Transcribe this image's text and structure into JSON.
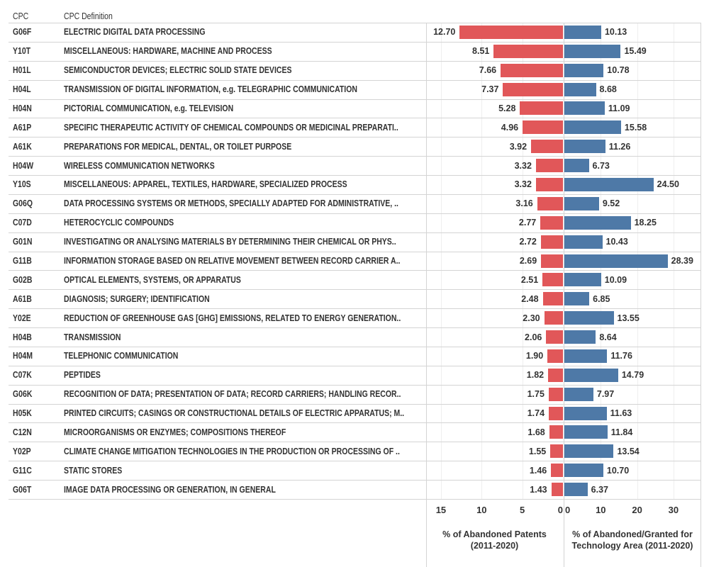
{
  "chart_data": {
    "type": "bar",
    "columns": {
      "code": "CPC",
      "definition": "CPC Definition"
    },
    "rows": [
      {
        "code": "G06F",
        "definition": "ELECTRIC DIGITAL DATA PROCESSING",
        "abandoned_pct": 12.7,
        "ratio_pct": 10.13
      },
      {
        "code": "Y10T",
        "definition": " MISCELLANEOUS: HARDWARE, MACHINE AND PROCESS",
        "abandoned_pct": 8.51,
        "ratio_pct": 15.49
      },
      {
        "code": "H01L",
        "definition": "SEMICONDUCTOR DEVICES; ELECTRIC SOLID STATE DEVICES",
        "abandoned_pct": 7.66,
        "ratio_pct": 10.78
      },
      {
        "code": "H04L",
        "definition": "TRANSMISSION OF DIGITAL INFORMATION, e.g. TELEGRAPHIC COMMUNICATION",
        "abandoned_pct": 7.37,
        "ratio_pct": 8.68
      },
      {
        "code": "H04N",
        "definition": "PICTORIAL COMMUNICATION, e.g. TELEVISION",
        "abandoned_pct": 5.28,
        "ratio_pct": 11.09
      },
      {
        "code": "A61P",
        "definition": "SPECIFIC THERAPEUTIC ACTIVITY OF CHEMICAL COMPOUNDS OR MEDICINAL PREPARATI..",
        "abandoned_pct": 4.96,
        "ratio_pct": 15.58
      },
      {
        "code": "A61K",
        "definition": "PREPARATIONS FOR MEDICAL, DENTAL, OR TOILET PURPOSE",
        "abandoned_pct": 3.92,
        "ratio_pct": 11.26
      },
      {
        "code": "H04W",
        "definition": "WIRELESS COMMUNICATION NETWORKS",
        "abandoned_pct": 3.32,
        "ratio_pct": 6.73
      },
      {
        "code": "Y10S",
        "definition": "MISCELLANEOUS: APPAREL, TEXTILES, HARDWARE, SPECIALIZED PROCESS",
        "abandoned_pct": 3.32,
        "ratio_pct": 24.5
      },
      {
        "code": "G06Q",
        "definition": "DATA PROCESSING SYSTEMS OR METHODS, SPECIALLY ADAPTED FOR ADMINISTRATIVE, ..",
        "abandoned_pct": 3.16,
        "ratio_pct": 9.52
      },
      {
        "code": "C07D",
        "definition": "HETEROCYCLIC COMPOUNDS",
        "abandoned_pct": 2.77,
        "ratio_pct": 18.25
      },
      {
        "code": "G01N",
        "definition": "INVESTIGATING OR ANALYSING MATERIALS BY DETERMINING THEIR CHEMICAL OR PHYS..",
        "abandoned_pct": 2.72,
        "ratio_pct": 10.43
      },
      {
        "code": "G11B",
        "definition": "INFORMATION STORAGE BASED ON RELATIVE MOVEMENT BETWEEN RECORD CARRIER A..",
        "abandoned_pct": 2.69,
        "ratio_pct": 28.39
      },
      {
        "code": "G02B",
        "definition": "OPTICAL ELEMENTS, SYSTEMS, OR APPARATUS",
        "abandoned_pct": 2.51,
        "ratio_pct": 10.09
      },
      {
        "code": "A61B",
        "definition": "DIAGNOSIS; SURGERY; IDENTIFICATION",
        "abandoned_pct": 2.48,
        "ratio_pct": 6.85
      },
      {
        "code": "Y02E",
        "definition": "REDUCTION OF GREENHOUSE GAS [GHG] EMISSIONS, RELATED TO ENERGY GENERATION..",
        "abandoned_pct": 2.3,
        "ratio_pct": 13.55
      },
      {
        "code": "H04B",
        "definition": "TRANSMISSION",
        "abandoned_pct": 2.06,
        "ratio_pct": 8.64
      },
      {
        "code": "H04M",
        "definition": "TELEPHONIC COMMUNICATION",
        "abandoned_pct": 1.9,
        "ratio_pct": 11.76
      },
      {
        "code": "C07K",
        "definition": "PEPTIDES",
        "abandoned_pct": 1.82,
        "ratio_pct": 14.79
      },
      {
        "code": "G06K",
        "definition": "RECOGNITION OF DATA; PRESENTATION OF DATA; RECORD CARRIERS; HANDLING RECOR..",
        "abandoned_pct": 1.75,
        "ratio_pct": 7.97
      },
      {
        "code": "H05K",
        "definition": "PRINTED CIRCUITS; CASINGS OR CONSTRUCTIONAL DETAILS OF ELECTRIC APPARATUS; M..",
        "abandoned_pct": 1.74,
        "ratio_pct": 11.63
      },
      {
        "code": "C12N",
        "definition": "MICROORGANISMS OR ENZYMES; COMPOSITIONS THEREOF",
        "abandoned_pct": 1.68,
        "ratio_pct": 11.84
      },
      {
        "code": "Y02P",
        "definition": "CLIMATE CHANGE MITIGATION TECHNOLOGIES IN THE PRODUCTION OR PROCESSING OF ..",
        "abandoned_pct": 1.55,
        "ratio_pct": 13.54
      },
      {
        "code": "G11C",
        "definition": "STATIC STORES",
        "abandoned_pct": 1.46,
        "ratio_pct": 10.7
      },
      {
        "code": "G06T",
        "definition": "IMAGE DATA PROCESSING OR GENERATION, IN GENERAL",
        "abandoned_pct": 1.43,
        "ratio_pct": 6.37
      }
    ],
    "axes": [
      {
        "label": "% of Abandoned Patents\n(2011-2020)",
        "range": [
          0,
          15
        ],
        "reversed": true,
        "ticks": [
          15,
          10,
          5,
          0
        ],
        "color": "#e15759"
      },
      {
        "label": "% of Abandoned/Granted for\nTechnology Area (2011-2020)",
        "range": [
          0,
          30
        ],
        "ticks": [
          0,
          10,
          20,
          30
        ],
        "color": "#4e79a7"
      }
    ],
    "grid": true
  }
}
